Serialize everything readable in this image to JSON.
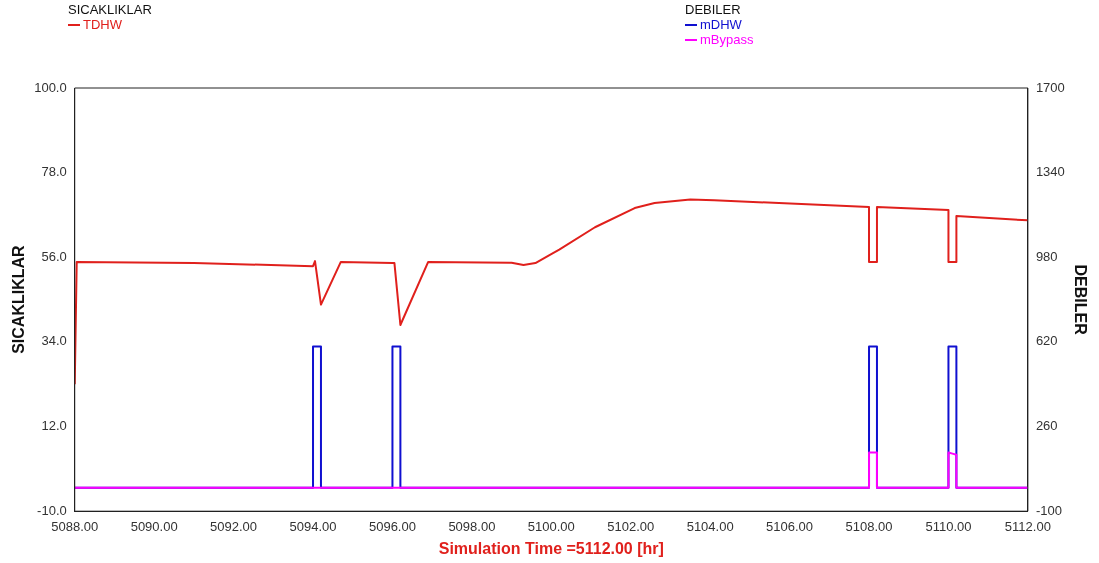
{
  "chart_data": {
    "type": "line",
    "xlabel": "Simulation Time =5112.00 [hr]",
    "ylabel": "SICAKLIKLAR",
    "y2label": "DEBILER",
    "xlim": [
      5088,
      5112
    ],
    "xticks": [
      {
        "value": 5088,
        "label": "5088.00"
      },
      {
        "value": 5090,
        "label": "5090.00"
      },
      {
        "value": 5092,
        "label": "5092.00"
      },
      {
        "value": 5094,
        "label": "5094.00"
      },
      {
        "value": 5096,
        "label": "5096.00"
      },
      {
        "value": 5098,
        "label": "5098.00"
      },
      {
        "value": 5100,
        "label": "5100.00"
      },
      {
        "value": 5102,
        "label": "5102.00"
      },
      {
        "value": 5104,
        "label": "5104.00"
      },
      {
        "value": 5106,
        "label": "5106.00"
      },
      {
        "value": 5108,
        "label": "5108.00"
      },
      {
        "value": 5110,
        "label": "5110.00"
      },
      {
        "value": 5112,
        "label": "5112.00"
      }
    ],
    "ylim": [
      -10,
      100
    ],
    "yticks": [
      {
        "value": -10,
        "label": "-10.0"
      },
      {
        "value": 12,
        "label": "12.0"
      },
      {
        "value": 34,
        "label": "34.0"
      },
      {
        "value": 56,
        "label": "56.0"
      },
      {
        "value": 78,
        "label": "78.0"
      },
      {
        "value": 100,
        "label": "100.0"
      }
    ],
    "y2lim": [
      -100,
      1700
    ],
    "y2ticks": [
      -100,
      260,
      620,
      980,
      1340,
      1700
    ],
    "grid": false,
    "legend": "top",
    "marker": "none",
    "line_style": "solid",
    "series": [
      {
        "name": "TDHW",
        "color": "#e0201c",
        "x": [
          5088,
          5088.05,
          5091,
          5094,
          5094.05,
          5094.2,
          5094.7,
          5096,
          5096.05,
          5096.2,
          5096.9,
          5099,
          5099.3,
          5099.6,
          5100.2,
          5101.1,
          5102.1,
          5102.6,
          5103.5,
          5104.1,
          5108,
          5108,
          5108.2,
          5108.2,
          5110,
          5110,
          5110.2,
          5110.2,
          5112
        ],
        "values": [
          23,
          54.8,
          54.5,
          53.7,
          55,
          43.7,
          54.8,
          54.5,
          54.5,
          38.4,
          54.8,
          54.6,
          54,
          54.5,
          58,
          63.8,
          68.8,
          70.1,
          71,
          70.8,
          69.1,
          54.8,
          54.8,
          69.1,
          68.3,
          54.8,
          54.8,
          66.7,
          65.6
        ]
      },
      {
        "name": "mDHW",
        "color": "#1010d0",
        "axis": "y2",
        "x": [
          5088,
          5094,
          5094,
          5094.2,
          5094.2,
          5096,
          5096,
          5096.2,
          5096.2,
          5108,
          5108,
          5108.2,
          5108.2,
          5110,
          5110,
          5110.2,
          5110.2,
          5112
        ],
        "values": [
          0,
          0,
          600,
          600,
          0,
          0,
          600,
          600,
          0,
          0,
          600,
          600,
          0,
          0,
          600,
          600,
          0,
          0
        ]
      },
      {
        "name": "mBypass",
        "color": "#ff00ff",
        "axis": "y2",
        "x": [
          5088,
          5108,
          5108,
          5108.2,
          5108.2,
          5110,
          5110,
          5110.1,
          5110.2,
          5110.2,
          5112
        ],
        "values": [
          0,
          0,
          150,
          150,
          0,
          0,
          150,
          145,
          140,
          0,
          0
        ]
      }
    ]
  }
}
